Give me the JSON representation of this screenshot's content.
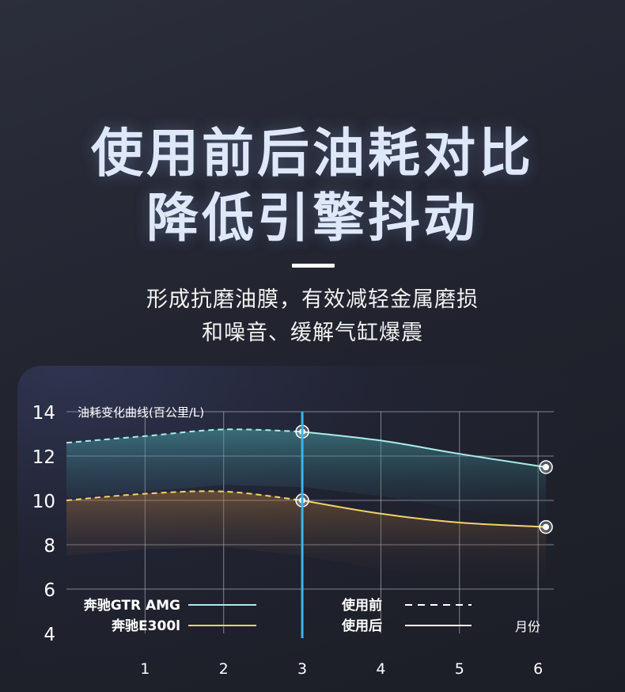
{
  "header": {
    "headline_line1": "使用前后油耗对比",
    "headline_line2": "降低引擎抖动",
    "subtitle_line1": "形成抗磨油膜，有效减轻金属磨损",
    "subtitle_line2": "和噪音、缓解气缸爆震"
  },
  "chart_data": {
    "type": "line",
    "title": "油耗变化曲线(百公里/L)",
    "xlabel": "月份",
    "ylabel": "",
    "x": [
      1,
      2,
      3,
      4,
      5,
      6
    ],
    "xlim": [
      0,
      6.2
    ],
    "ylim": [
      4,
      14
    ],
    "yticks": [
      4,
      6,
      8,
      10,
      12,
      14
    ],
    "grid": true,
    "marker_x": 3,
    "series": [
      {
        "name": "奔驰GTR AMG",
        "color": "#a8ecea",
        "points": [
          [
            0,
            12.6
          ],
          [
            1,
            12.9
          ],
          [
            2,
            13.2
          ],
          [
            3,
            13.1
          ],
          [
            4,
            12.7
          ],
          [
            5,
            12.1
          ],
          [
            6.1,
            11.5
          ]
        ]
      },
      {
        "name": "奔驰E300l",
        "color": "#f3d36a",
        "points": [
          [
            0,
            10.0
          ],
          [
            1,
            10.3
          ],
          [
            2,
            10.4
          ],
          [
            3,
            10.0
          ],
          [
            4,
            9.4
          ],
          [
            5,
            9.0
          ],
          [
            6.1,
            8.8
          ]
        ]
      }
    ],
    "line_styles": [
      {
        "label": "使用前",
        "style": "dashed"
      },
      {
        "label": "使用后",
        "style": "solid"
      }
    ],
    "legend_placement": "bottom"
  }
}
